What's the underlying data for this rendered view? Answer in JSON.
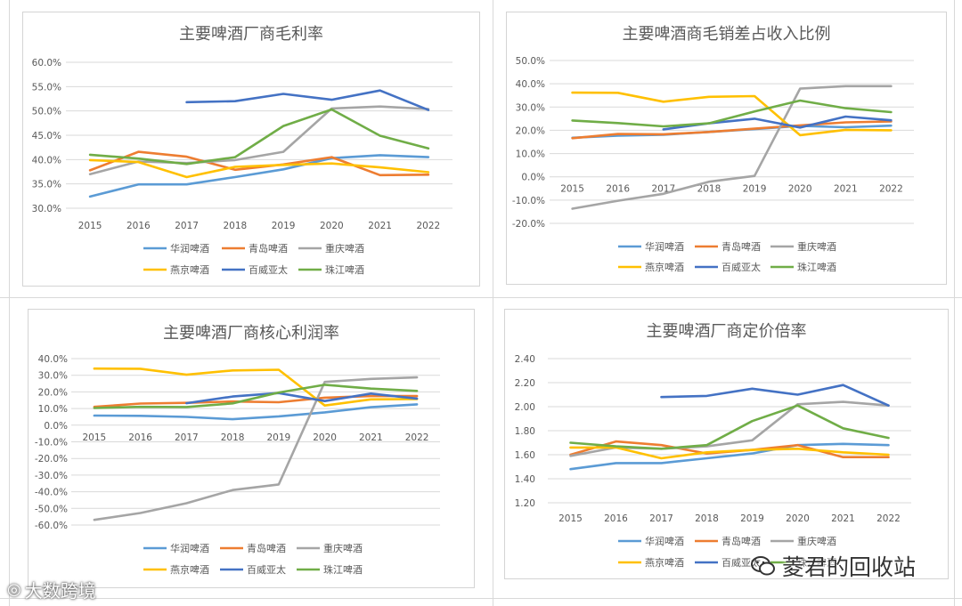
{
  "colors": {
    "华润啤酒": "#5b9bd5",
    "青岛啤酒": "#ed7d31",
    "重庆啤酒": "#a5a5a5",
    "燕京啤酒": "#ffc000",
    "百威亚太": "#4472c4",
    "珠江啤酒": "#70ad47"
  },
  "watermarks": {
    "left_text": "大数跨境",
    "right_text": "菱君的回收站"
  },
  "chart_data": [
    {
      "type": "line",
      "title": "主要啤酒厂商毛利率",
      "categories": [
        "2015",
        "2016",
        "2017",
        "2018",
        "2019",
        "2020",
        "2021",
        "2022"
      ],
      "yticks": [
        "60.0%",
        "55.0%",
        "50.0%",
        "45.0%",
        "40.0%",
        "35.0%",
        "30.0%"
      ],
      "ylim": [
        30,
        60
      ],
      "legend": [
        "华润啤酒",
        "青岛啤酒",
        "重庆啤酒",
        "燕京啤酒",
        "百威亚太",
        "珠江啤酒"
      ],
      "series": [
        {
          "name": "华润啤酒",
          "values": [
            32.4,
            34.9,
            34.9,
            36.4,
            38.0,
            40.3,
            40.9,
            40.5
          ]
        },
        {
          "name": "青岛啤酒",
          "values": [
            37.8,
            41.6,
            40.6,
            37.9,
            39.0,
            40.5,
            36.8,
            36.9
          ]
        },
        {
          "name": "重庆啤酒",
          "values": [
            37.0,
            39.6,
            39.3,
            39.9,
            41.6,
            50.5,
            50.9,
            50.4
          ]
        },
        {
          "name": "燕京啤酒",
          "values": [
            39.9,
            39.5,
            36.4,
            38.5,
            38.9,
            39.2,
            38.4,
            37.4
          ]
        },
        {
          "name": "百威亚太",
          "values": [
            null,
            null,
            51.8,
            52.0,
            53.5,
            52.3,
            54.2,
            50.2
          ]
        },
        {
          "name": "珠江啤酒",
          "values": [
            41.0,
            40.2,
            39.1,
            40.5,
            46.9,
            50.3,
            44.9,
            42.3
          ]
        }
      ]
    },
    {
      "type": "line",
      "title": "主要啤酒商毛销差占收入比例",
      "categories": [
        "2015",
        "2016",
        "2017",
        "2018",
        "2019",
        "2020",
        "2021",
        "2022"
      ],
      "yticks": [
        "50.0%",
        "40.0%",
        "30.0%",
        "20.0%",
        "10.0%",
        "0.0%",
        "-10.0%",
        "-20.0%"
      ],
      "ylim": [
        -20,
        50
      ],
      "legend": [
        "华润啤酒",
        "青岛啤酒",
        "重庆啤酒",
        "燕京啤酒",
        "百威亚太",
        "珠江啤酒"
      ],
      "series": [
        {
          "name": "华润啤酒",
          "values": [
            16.8,
            17.7,
            18.1,
            19.3,
            20.5,
            21.9,
            21.3,
            22.0
          ]
        },
        {
          "name": "青岛啤酒",
          "values": [
            16.6,
            18.4,
            18.3,
            19.3,
            20.7,
            22.1,
            23.4,
            23.8
          ]
        },
        {
          "name": "重庆啤酒",
          "values": [
            -13.7,
            -10.3,
            -7.3,
            -2.1,
            0.4,
            37.9,
            39.0,
            39.0
          ]
        },
        {
          "name": "燕京啤酒",
          "values": [
            36.2,
            36.1,
            32.3,
            34.4,
            34.7,
            17.9,
            20.2,
            20.0
          ]
        },
        {
          "name": "百威亚太",
          "values": [
            null,
            null,
            20.4,
            23.0,
            25.0,
            21.2,
            25.9,
            24.3
          ]
        },
        {
          "name": "珠江啤酒",
          "values": [
            24.2,
            23.1,
            21.7,
            23.0,
            28.1,
            32.8,
            29.5,
            27.8
          ]
        }
      ]
    },
    {
      "type": "line",
      "title": "主要啤酒厂商核心利润率",
      "categories": [
        "2015",
        "2016",
        "2017",
        "2018",
        "2019",
        "2020",
        "2021",
        "2022"
      ],
      "yticks": [
        "40.0%",
        "30.0%",
        "20.0%",
        "10.0%",
        "0.0%",
        "-10.0%",
        "-20.0%",
        "-30.0%",
        "-40.0%",
        "-50.0%",
        "-60.0%"
      ],
      "ylim": [
        -60,
        40
      ],
      "legend": [
        "华润啤酒",
        "青岛啤酒",
        "重庆啤酒",
        "燕京啤酒",
        "百威亚太",
        "珠江啤酒"
      ],
      "series": [
        {
          "name": "华润啤酒",
          "values": [
            5.8,
            5.6,
            5.0,
            3.6,
            5.3,
            7.7,
            10.8,
            12.5
          ]
        },
        {
          "name": "青岛啤酒",
          "values": [
            11.0,
            13.0,
            13.4,
            14.2,
            13.8,
            16.5,
            17.5,
            17.5
          ]
        },
        {
          "name": "重庆啤酒",
          "values": [
            -56.9,
            -52.8,
            -46.9,
            -39.0,
            -35.6,
            26.0,
            27.8,
            28.7
          ]
        },
        {
          "name": "燕京啤酒",
          "values": [
            34.0,
            33.9,
            30.3,
            32.9,
            33.3,
            11.8,
            15.5,
            15.7
          ]
        },
        {
          "name": "百威亚太",
          "values": [
            null,
            null,
            13.2,
            17.2,
            19.3,
            14.5,
            19.0,
            16.0
          ]
        },
        {
          "name": "珠江啤酒",
          "values": [
            10.3,
            11.0,
            10.9,
            13.1,
            19.6,
            24.3,
            22.0,
            20.6
          ]
        }
      ]
    },
    {
      "type": "line",
      "title": "主要啤酒厂商定价倍率",
      "categories": [
        "2015",
        "2016",
        "2017",
        "2018",
        "2019",
        "2020",
        "2021",
        "2022"
      ],
      "yticks": [
        "2.40",
        "2.20",
        "2.00",
        "1.80",
        "1.60",
        "1.40",
        "1.20"
      ],
      "ylim": [
        1.2,
        2.4
      ],
      "legend": [
        "华润啤酒",
        "青岛啤酒",
        "重庆啤酒",
        "燕京啤酒",
        "百威亚太",
        "珠江啤酒"
      ],
      "series": [
        {
          "name": "华润啤酒",
          "values": [
            1.48,
            1.53,
            1.53,
            1.57,
            1.61,
            1.68,
            1.69,
            1.68
          ]
        },
        {
          "name": "青岛啤酒",
          "values": [
            1.6,
            1.71,
            1.68,
            1.61,
            1.64,
            1.68,
            1.58,
            1.58
          ]
        },
        {
          "name": "重庆啤酒",
          "values": [
            1.59,
            1.66,
            1.65,
            1.67,
            1.72,
            2.02,
            2.04,
            2.01
          ]
        },
        {
          "name": "燕京啤酒",
          "values": [
            1.66,
            1.66,
            1.57,
            1.62,
            1.64,
            1.65,
            1.62,
            1.6
          ]
        },
        {
          "name": "百威亚太",
          "values": [
            null,
            null,
            2.08,
            2.09,
            2.15,
            2.1,
            2.18,
            2.01
          ]
        },
        {
          "name": "珠江啤酒",
          "values": [
            1.7,
            1.67,
            1.65,
            1.68,
            1.88,
            2.01,
            1.82,
            1.74
          ]
        }
      ]
    }
  ]
}
